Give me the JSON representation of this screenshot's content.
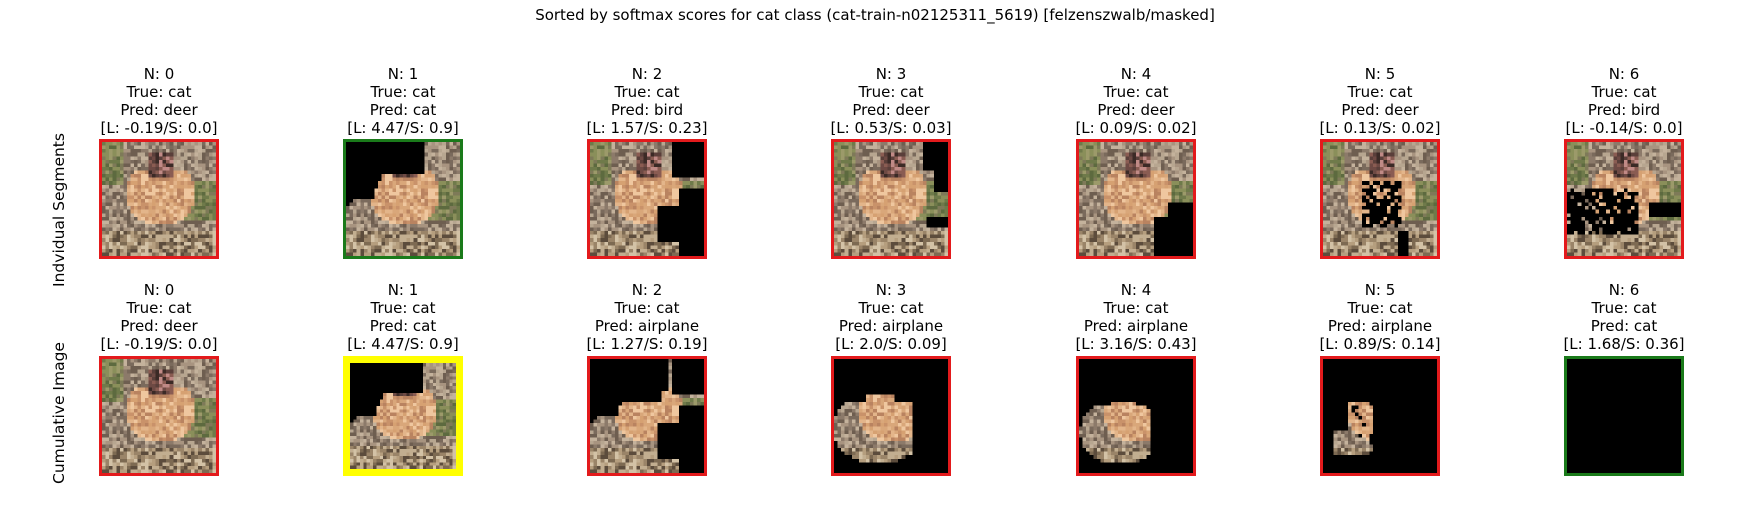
{
  "figure": {
    "title": "Sorted by softmax scores for cat class (cat-train-n02125311_5619) [felzenszwalb/masked]"
  },
  "colors": {
    "wrong": "#e31a1c",
    "correct": "#1a7a1a",
    "best": "#ffff00",
    "masked": "#000000"
  },
  "chart_data": {
    "type": "image-grid",
    "title": "Sorted by softmax scores for cat class (cat-train-n02125311_5619) [felzenszwalb/masked]",
    "rows": [
      {
        "label": "Indvidual Segments",
        "panels": [
          {
            "n": "N: 0",
            "true": "True: cat",
            "pred": "Pred: deer",
            "ls": "[L: -0.19/S: 0.0]",
            "L": -0.19,
            "S": 0.0,
            "border": "wrong",
            "mask": "none"
          },
          {
            "n": "N: 1",
            "true": "True: cat",
            "pred": "Pred: cat",
            "ls": "[L: 4.47/S: 0.9]",
            "L": 4.47,
            "S": 0.9,
            "border": "correct",
            "mask": "seg1"
          },
          {
            "n": "N: 2",
            "true": "True: cat",
            "pred": "Pred: bird",
            "ls": "[L: 1.57/S: 0.23]",
            "L": 1.57,
            "S": 0.23,
            "border": "wrong",
            "mask": "seg2"
          },
          {
            "n": "N: 3",
            "true": "True: cat",
            "pred": "Pred: deer",
            "ls": "[L: 0.53/S: 0.03]",
            "L": 0.53,
            "S": 0.03,
            "border": "wrong",
            "mask": "seg3"
          },
          {
            "n": "N: 4",
            "true": "True: cat",
            "pred": "Pred: deer",
            "ls": "[L: 0.09/S: 0.02]",
            "L": 0.09,
            "S": 0.02,
            "border": "wrong",
            "mask": "seg4"
          },
          {
            "n": "N: 5",
            "true": "True: cat",
            "pred": "Pred: deer",
            "ls": "[L: 0.13/S: 0.02]",
            "L": 0.13,
            "S": 0.02,
            "border": "wrong",
            "mask": "seg5"
          },
          {
            "n": "N: 6",
            "true": "True: cat",
            "pred": "Pred: bird",
            "ls": "[L: -0.14/S: 0.0]",
            "L": -0.14,
            "S": 0.0,
            "border": "wrong",
            "mask": "seg6"
          }
        ]
      },
      {
        "label": "Cumulative Image",
        "panels": [
          {
            "n": "N: 0",
            "true": "True: cat",
            "pred": "Pred: deer",
            "ls": "[L: -0.19/S: 0.0]",
            "L": -0.19,
            "S": 0.0,
            "border": "wrong",
            "mask": "none"
          },
          {
            "n": "N: 1",
            "true": "True: cat",
            "pred": "Pred: cat",
            "ls": "[L: 4.47/S: 0.9]",
            "L": 4.47,
            "S": 0.9,
            "border": "best",
            "mask": "cum1"
          },
          {
            "n": "N: 2",
            "true": "True: cat",
            "pred": "Pred: airplane",
            "ls": "[L: 1.27/S: 0.19]",
            "L": 1.27,
            "S": 0.19,
            "border": "wrong",
            "mask": "cum2"
          },
          {
            "n": "N: 3",
            "true": "True: cat",
            "pred": "Pred: airplane",
            "ls": "[L: 2.0/S: 0.09]",
            "L": 2.0,
            "S": 0.09,
            "border": "wrong",
            "mask": "cum3"
          },
          {
            "n": "N: 4",
            "true": "True: cat",
            "pred": "Pred: airplane",
            "ls": "[L: 3.16/S: 0.43]",
            "L": 3.16,
            "S": 0.43,
            "border": "wrong",
            "mask": "cum4"
          },
          {
            "n": "N: 5",
            "true": "True: cat",
            "pred": "Pred: airplane",
            "ls": "[L: 0.89/S: 0.14]",
            "L": 0.89,
            "S": 0.14,
            "border": "wrong",
            "mask": "cum5"
          },
          {
            "n": "N: 6",
            "true": "True: cat",
            "pred": "Pred: cat",
            "ls": "[L: 1.68/S: 0.36]",
            "L": 1.68,
            "S": 0.36,
            "border": "correct",
            "mask": "all"
          }
        ]
      }
    ]
  }
}
